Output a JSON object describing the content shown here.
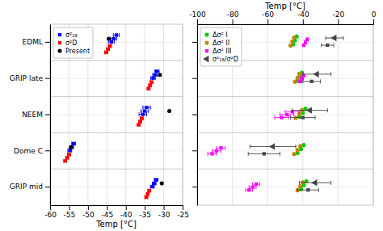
{
  "chart_data": [
    {
      "type": "scatter",
      "categories": [
        "EDML",
        "GRIP late",
        "NEEM",
        "Dome C",
        "GRIP mid"
      ],
      "xlabel": "Temp [°C]",
      "xlim": [
        -60,
        -25
      ],
      "xticks": [
        -60,
        -55,
        -50,
        -45,
        -40,
        -35,
        -30,
        -25
      ],
      "grid": true,
      "legend": "upper left",
      "series": [
        {
          "name": "σ²₁₈",
          "color": "blue",
          "marker": "square",
          "values": [
            [
              -42.5,
              -43.2,
              -43.8
            ],
            [
              -31.8,
              -32.3,
              -32.8
            ],
            [
              -34.5,
              -35.0,
              -35.5
            ],
            [
              -53.8,
              -54.3,
              -54.8
            ],
            [
              -32.0,
              -32.5,
              -33.0
            ]
          ],
          "errors": [
            [
              0.8,
              0.8,
              0.8
            ],
            [
              0.6,
              0.6,
              0.6
            ],
            [
              1.0,
              1.0,
              1.0
            ],
            [
              0.5,
              0.5,
              0.5
            ],
            [
              0.5,
              0.5,
              0.5
            ]
          ]
        },
        {
          "name": "σ²D",
          "color": "red",
          "marker": "square",
          "values": [
            [
              -44.2,
              -44.7,
              -45.2
            ],
            [
              -33.2,
              -33.6,
              -34.0
            ],
            [
              -35.8,
              -36.2,
              -36.6
            ],
            [
              -55.0,
              -55.5,
              -56.0
            ],
            [
              -33.8,
              -34.2,
              -34.6
            ]
          ],
          "errors": [
            [
              0.4,
              0.4,
              0.4
            ],
            [
              0.4,
              0.4,
              0.4
            ],
            [
              0.4,
              0.4,
              0.4
            ],
            [
              0.4,
              0.4,
              0.4
            ],
            [
              0.4,
              0.4,
              0.4
            ]
          ]
        },
        {
          "name": "Present",
          "color": "black",
          "marker": "circle",
          "values": [
            -44.5,
            -31.0,
            -28.5,
            -54.5,
            -30.5
          ]
        }
      ]
    },
    {
      "type": "scatter",
      "categories": [
        "EDML",
        "GRIP late",
        "NEEM",
        "Dome C",
        "GRIP mid"
      ],
      "tick_labels": "x",
      "xlabel": "Temp [°C]",
      "xlim": [
        -100,
        0
      ],
      "xticks": [
        -100,
        -80,
        -60,
        -40,
        -20,
        0
      ],
      "grid": true,
      "legend": "upper left",
      "series": [
        {
          "name": "Δσ² I",
          "color": "#00cc00",
          "marker": "circle",
          "values": [
            [
              -43.5,
              -44.5,
              -45.5
            ],
            [
              -40.5,
              -41.5,
              -43.0
            ],
            [
              -38.5,
              -40.0,
              -42.0
            ],
            [
              -39.5,
              -41.0,
              -43.0
            ],
            [
              -38.0,
              -39.5,
              -41.0
            ]
          ],
          "errors": [
            [
              0.4,
              0.4,
              0.4
            ],
            [
              0.4,
              0.4,
              0.4
            ],
            [
              0.4,
              0.4,
              0.4
            ],
            [
              0.4,
              0.4,
              0.4
            ],
            [
              0.4,
              0.4,
              0.4
            ]
          ]
        },
        {
          "name": "Δσ² II",
          "color": "#bb8800",
          "marker": "circle",
          "values": [
            [
              -45.0,
              -46.0,
              -47.0
            ],
            [
              -42.0,
              -43.0,
              -44.5
            ],
            [
              -40.5,
              -42.0,
              -44.0
            ],
            [
              -41.5,
              -43.0,
              -45.0
            ],
            [
              -40.0,
              -41.5,
              -43.0
            ]
          ],
          "errors": [
            [
              0.4,
              0.4,
              0.4
            ],
            [
              0.4,
              0.4,
              0.4
            ],
            [
              0.4,
              0.4,
              0.4
            ],
            [
              0.4,
              0.4,
              0.4
            ],
            [
              0.4,
              0.4,
              0.4
            ]
          ]
        },
        {
          "name": "Δσ² III",
          "color": "#ff00ff",
          "marker": "square",
          "values": [
            [
              -37.5,
              -38.5,
              -39.5
            ],
            [
              -39.5,
              -40.5,
              -41.5
            ],
            [
              -46.0,
              -49.0,
              -52.0
            ],
            [
              -86.5,
              -89.0,
              -91.5
            ],
            [
              -66.5,
              -68.5,
              -70.5
            ]
          ],
          "errors": [
            [
              0.5,
              0.5,
              0.5
            ],
            [
              0.8,
              0.8,
              0.8
            ],
            [
              4.0,
              4.0,
              4.0
            ],
            [
              2.5,
              2.5,
              2.5
            ],
            [
              2.0,
              2.0,
              2.0
            ]
          ]
        },
        {
          "name": "σ²₁₈/σ²D",
          "color": "#444444",
          "marker": "triangle-left",
          "values": [
            -22.0,
            -32.0,
            -36.0,
            -57.0,
            -33.0
          ],
          "errors": [
            5.0,
            8.0,
            10.0,
            13.0,
            9.0
          ]
        },
        {
          "color": "#444444",
          "marker": "square",
          "values": [
            -26.0,
            -35.0,
            -40.0,
            -62.0,
            -37.0
          ],
          "errors": [
            3.5,
            5.0,
            7.0,
            9.0,
            6.0
          ]
        }
      ]
    }
  ]
}
